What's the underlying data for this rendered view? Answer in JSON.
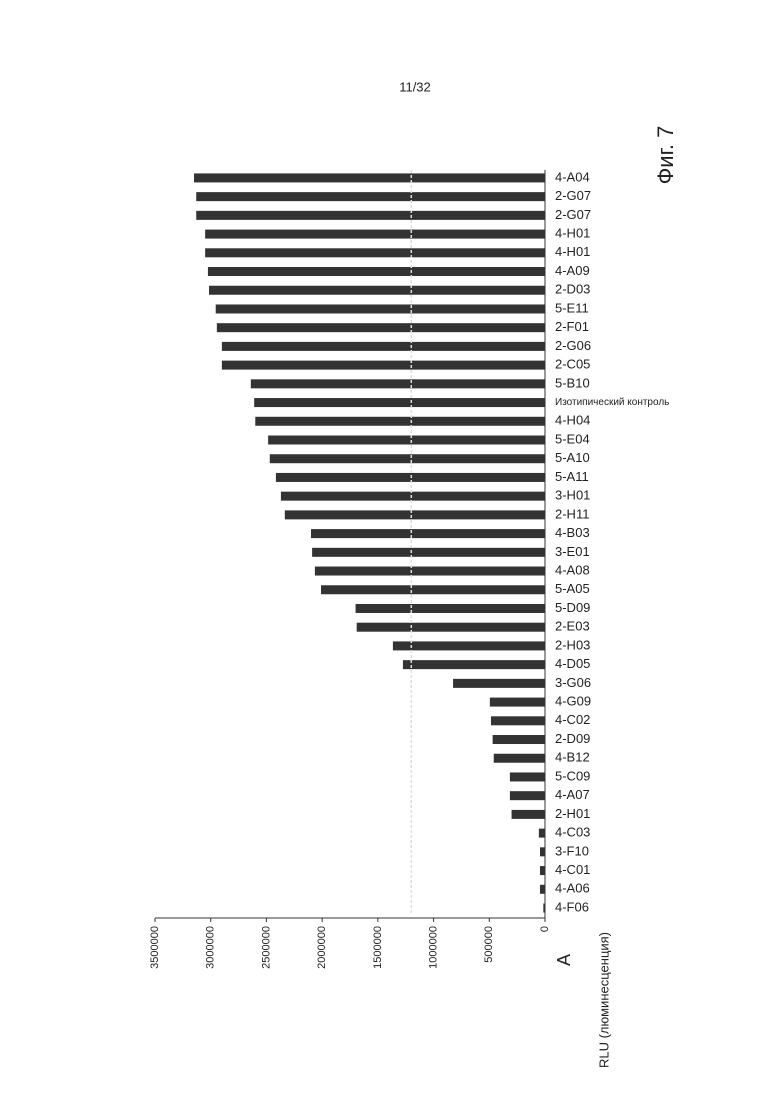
{
  "page_number": "11/32",
  "figure_label": "Фиг. 7",
  "panel_label": "A",
  "chart_data": {
    "type": "bar",
    "y_label": "RLU (люминесценция)",
    "categories": [
      "4-F06",
      "4-A06",
      "4-C01",
      "3-F10",
      "4-C03",
      "2-H01",
      "4-A07",
      "5-C09",
      "4-B12",
      "2-D09",
      "4-C02",
      "4-G09",
      "3-G06",
      "4-D05",
      "2-H03",
      "2-E03",
      "5-D09",
      "5-A05",
      "4-A08",
      "3-E01",
      "4-B03",
      "2-H11",
      "3-H01",
      "5-A11",
      "5-A10",
      "5-E04",
      "4-H04",
      "Изотипический контроль",
      "5-B10",
      "2-C05",
      "2-G06",
      "2-F01",
      "5-E11",
      "2-D03",
      "4-A09",
      "4-H01",
      "4-H01",
      "2-G07",
      "2-G07",
      "4-A04"
    ],
    "values": [
      15000,
      45000,
      45000,
      45000,
      55000,
      300000,
      315000,
      315000,
      460000,
      470000,
      485000,
      495000,
      825000,
      1275000,
      1365000,
      1690000,
      1700000,
      2010000,
      2065000,
      2090000,
      2100000,
      2335000,
      2370000,
      2415000,
      2470000,
      2485000,
      2600000,
      2610000,
      2640000,
      2900000,
      2900000,
      2945000,
      2955000,
      3015000,
      3025000,
      3050000,
      3050000,
      3130000,
      3130000,
      3150000
    ],
    "color": "#333333",
    "reference_line": 1200000,
    "ylim": [
      0,
      3500000
    ],
    "yticks": [
      0,
      500000,
      1000000,
      1500000,
      2000000,
      2500000,
      3000000,
      3500000
    ]
  }
}
